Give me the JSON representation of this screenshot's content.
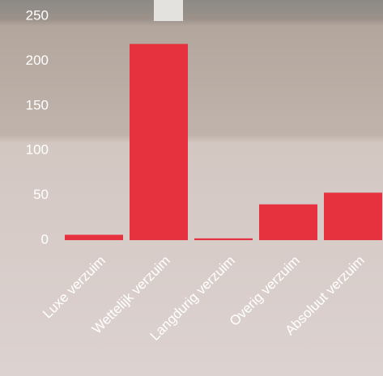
{
  "chart_data": {
    "type": "bar",
    "categories": [
      "Luxe verzuim",
      "Wettelijk verzuim",
      "Langdurig verzuim",
      "Overig verzuim",
      "Absoluut verzuim"
    ],
    "values": [
      6,
      219,
      2,
      40,
      53
    ],
    "color": "#e5323e",
    "ylim": [
      0,
      250
    ],
    "yticks": [
      0,
      50,
      100,
      150,
      200,
      250
    ],
    "grid": false
  }
}
